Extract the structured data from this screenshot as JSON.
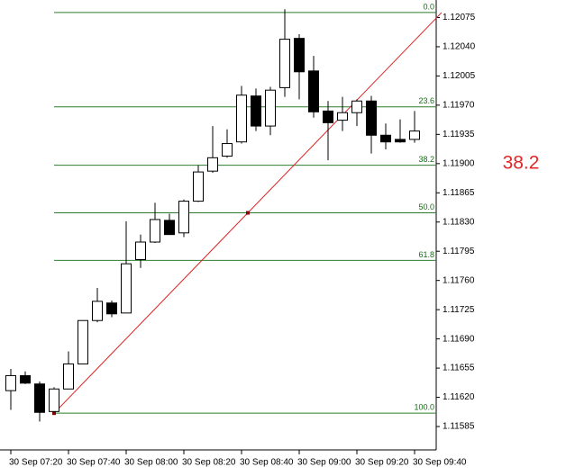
{
  "chart_data": {
    "type": "candlestick",
    "categories": [
      "30 Sep 07:20",
      null,
      null,
      null,
      "30 Sep 07:40",
      null,
      null,
      null,
      "30 Sep 08:00",
      null,
      null,
      null,
      "30 Sep 08:20",
      null,
      null,
      null,
      "30 Sep 08:40",
      null,
      null,
      null,
      "30 Sep 09:00",
      null,
      null,
      null,
      "30 Sep 09:20",
      null,
      null,
      null,
      "30 Sep 09:40"
    ],
    "open": [
      1.11628,
      1.11646,
      1.11636,
      1.11603,
      1.1163,
      1.1166,
      1.11712,
      1.11733,
      1.11721,
      1.11785,
      1.11806,
      1.11832,
      1.11817,
      1.11855,
      1.11891,
      1.11909,
      1.11926,
      1.11981,
      1.11945,
      1.11991,
      1.1205,
      1.12011,
      1.11963,
      1.11952,
      1.11961,
      1.11975,
      1.11934,
      1.11929,
      1.11929
    ],
    "high": [
      1.11654,
      1.11651,
      1.11639,
      1.11632,
      1.11675,
      1.11712,
      1.11751,
      1.11736,
      1.11831,
      1.11815,
      1.11853,
      1.1184,
      1.11857,
      1.11898,
      1.11945,
      1.11941,
      1.11993,
      1.1199,
      1.11992,
      1.12085,
      1.12055,
      1.12029,
      1.11975,
      1.1198,
      1.11977,
      1.11981,
      1.11948,
      1.11953,
      1.11963
    ],
    "low": [
      1.11605,
      1.11636,
      1.11591,
      1.11601,
      1.1163,
      1.1166,
      1.1171,
      1.11716,
      1.11721,
      1.11775,
      1.11805,
      1.11815,
      1.11812,
      1.11854,
      1.11889,
      1.11907,
      1.11924,
      1.11939,
      1.11934,
      1.1198,
      1.11977,
      1.11955,
      1.11904,
      1.11939,
      1.11945,
      1.11912,
      1.11917,
      1.11925,
      1.11925
    ],
    "close": [
      1.11646,
      1.11637,
      1.11602,
      1.1163,
      1.1166,
      1.11712,
      1.11735,
      1.1172,
      1.1178,
      1.11806,
      1.11833,
      1.11815,
      1.11855,
      1.1189,
      1.11907,
      1.11924,
      1.11982,
      1.11945,
      1.11988,
      1.12049,
      1.1201,
      1.11962,
      1.11949,
      1.11961,
      1.11975,
      1.11934,
      1.11926,
      1.11926,
      1.11939
    ],
    "up_color": "#ffffff",
    "down_color": "#000000",
    "line_color": "#000000",
    "fib_levels": [
      {
        "label": "0.0",
        "price": 1.12081
      },
      {
        "label": "23.6",
        "price": 1.11968
      },
      {
        "label": "38.2",
        "price": 1.11898
      },
      {
        "label": "50.0",
        "price": 1.11841
      },
      {
        "label": "61.8",
        "price": 1.11784
      },
      {
        "label": "100.0",
        "price": 1.11601
      }
    ],
    "fib_color": "#2e7d2e",
    "trend_color": "#dd2222",
    "annotation": "38.2",
    "ylim": [
      1.11557,
      1.12096
    ],
    "yticks": [
      1.12075,
      {
        "value": 1.1204,
        "label": "1.12040"
      },
      1.12005,
      {
        "value": 1.1197,
        "label": "1.11970"
      },
      1.11935,
      {
        "value": 1.119,
        "label": "1.11900"
      },
      1.11865,
      {
        "value": 1.1183,
        "label": "1.11830"
      },
      1.11795,
      {
        "value": 1.1176,
        "label": "1.11760"
      },
      1.11725,
      {
        "value": 1.1169,
        "label": "1.11690"
      },
      1.11655,
      {
        "value": 1.1162,
        "label": "1.11620"
      },
      1.11585
    ]
  }
}
